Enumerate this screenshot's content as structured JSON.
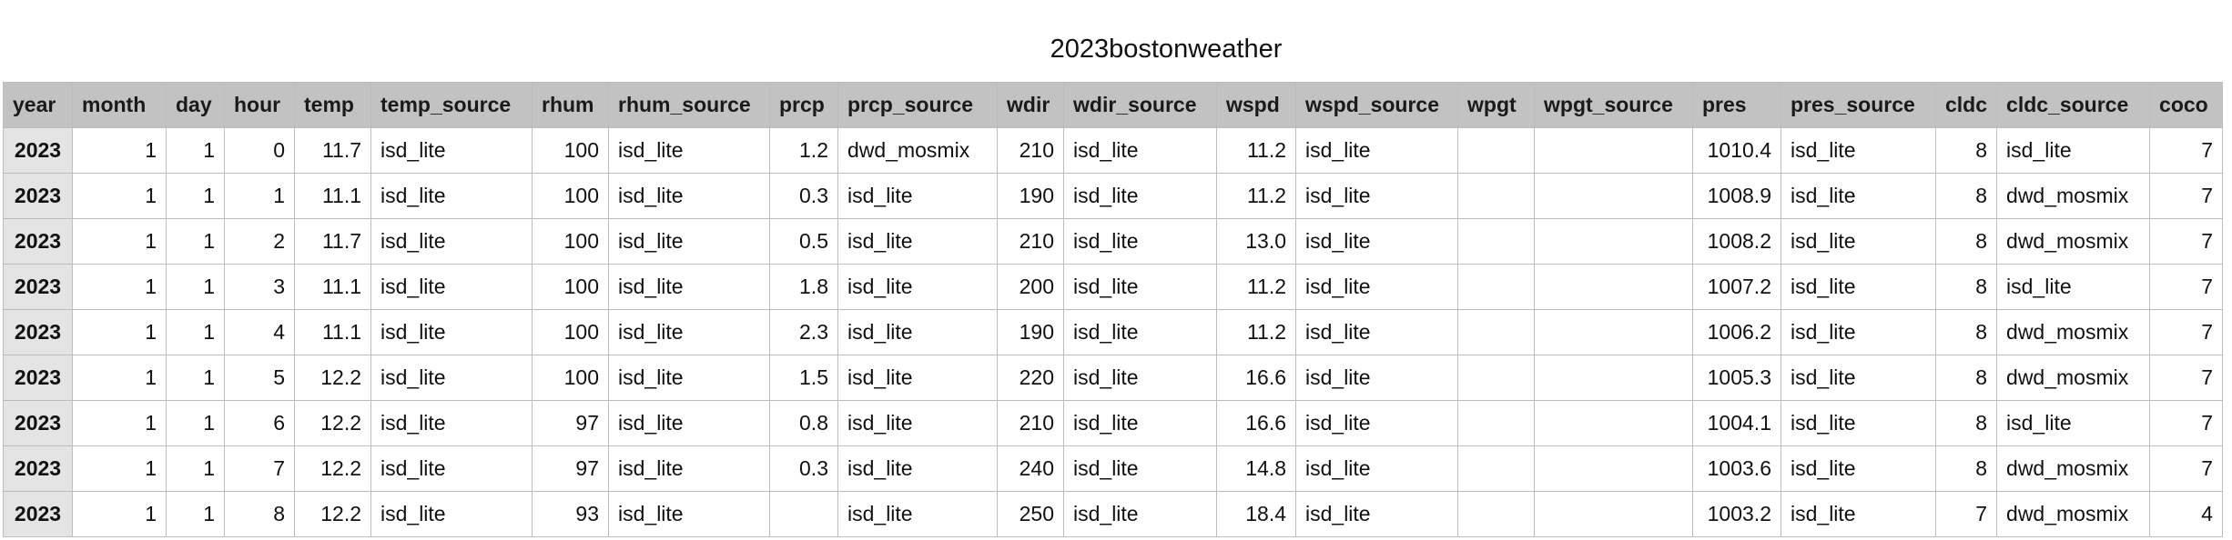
{
  "sheet": {
    "title": "2023bostonweather"
  },
  "columns": [
    {
      "key": "year",
      "label": "year",
      "type": "year"
    },
    {
      "key": "month",
      "label": "month",
      "type": "num"
    },
    {
      "key": "day",
      "label": "day",
      "type": "num"
    },
    {
      "key": "hour",
      "label": "hour",
      "type": "num"
    },
    {
      "key": "temp",
      "label": "temp",
      "type": "num"
    },
    {
      "key": "temp_source",
      "label": "temp_source",
      "type": "txt"
    },
    {
      "key": "rhum",
      "label": "rhum",
      "type": "num"
    },
    {
      "key": "rhum_source",
      "label": "rhum_source",
      "type": "txt"
    },
    {
      "key": "prcp",
      "label": "prcp",
      "type": "num"
    },
    {
      "key": "prcp_source",
      "label": "prcp_source",
      "type": "txt"
    },
    {
      "key": "wdir",
      "label": "wdir",
      "type": "num"
    },
    {
      "key": "wdir_source",
      "label": "wdir_source",
      "type": "txt"
    },
    {
      "key": "wspd",
      "label": "wspd",
      "type": "num"
    },
    {
      "key": "wspd_source",
      "label": "wspd_source",
      "type": "txt"
    },
    {
      "key": "wpgt",
      "label": "wpgt",
      "type": "num"
    },
    {
      "key": "wpgt_source",
      "label": "wpgt_source",
      "type": "txt"
    },
    {
      "key": "pres",
      "label": "pres",
      "type": "num"
    },
    {
      "key": "pres_source",
      "label": "pres_source",
      "type": "txt"
    },
    {
      "key": "cldc",
      "label": "cldc",
      "type": "num"
    },
    {
      "key": "cldc_source",
      "label": "cldc_source",
      "type": "txt"
    },
    {
      "key": "coco",
      "label": "coco",
      "type": "num"
    }
  ],
  "rows": [
    [
      "2023",
      "1",
      "1",
      "0",
      "11.7",
      "isd_lite",
      "100",
      "isd_lite",
      "1.2",
      "dwd_mosmix",
      "210",
      "isd_lite",
      "11.2",
      "isd_lite",
      "",
      "",
      "1010.4",
      "isd_lite",
      "8",
      "isd_lite",
      "7"
    ],
    [
      "2023",
      "1",
      "1",
      "1",
      "11.1",
      "isd_lite",
      "100",
      "isd_lite",
      "0.3",
      "isd_lite",
      "190",
      "isd_lite",
      "11.2",
      "isd_lite",
      "",
      "",
      "1008.9",
      "isd_lite",
      "8",
      "dwd_mosmix",
      "7"
    ],
    [
      "2023",
      "1",
      "1",
      "2",
      "11.7",
      "isd_lite",
      "100",
      "isd_lite",
      "0.5",
      "isd_lite",
      "210",
      "isd_lite",
      "13.0",
      "isd_lite",
      "",
      "",
      "1008.2",
      "isd_lite",
      "8",
      "dwd_mosmix",
      "7"
    ],
    [
      "2023",
      "1",
      "1",
      "3",
      "11.1",
      "isd_lite",
      "100",
      "isd_lite",
      "1.8",
      "isd_lite",
      "200",
      "isd_lite",
      "11.2",
      "isd_lite",
      "",
      "",
      "1007.2",
      "isd_lite",
      "8",
      "isd_lite",
      "7"
    ],
    [
      "2023",
      "1",
      "1",
      "4",
      "11.1",
      "isd_lite",
      "100",
      "isd_lite",
      "2.3",
      "isd_lite",
      "190",
      "isd_lite",
      "11.2",
      "isd_lite",
      "",
      "",
      "1006.2",
      "isd_lite",
      "8",
      "dwd_mosmix",
      "7"
    ],
    [
      "2023",
      "1",
      "1",
      "5",
      "12.2",
      "isd_lite",
      "100",
      "isd_lite",
      "1.5",
      "isd_lite",
      "220",
      "isd_lite",
      "16.6",
      "isd_lite",
      "",
      "",
      "1005.3",
      "isd_lite",
      "8",
      "dwd_mosmix",
      "7"
    ],
    [
      "2023",
      "1",
      "1",
      "6",
      "12.2",
      "isd_lite",
      "97",
      "isd_lite",
      "0.8",
      "isd_lite",
      "210",
      "isd_lite",
      "16.6",
      "isd_lite",
      "",
      "",
      "1004.1",
      "isd_lite",
      "8",
      "isd_lite",
      "7"
    ],
    [
      "2023",
      "1",
      "1",
      "7",
      "12.2",
      "isd_lite",
      "97",
      "isd_lite",
      "0.3",
      "isd_lite",
      "240",
      "isd_lite",
      "14.8",
      "isd_lite",
      "",
      "",
      "1003.6",
      "isd_lite",
      "8",
      "dwd_mosmix",
      "7"
    ],
    [
      "2023",
      "1",
      "1",
      "8",
      "12.2",
      "isd_lite",
      "93",
      "isd_lite",
      "",
      "isd_lite",
      "250",
      "isd_lite",
      "18.4",
      "isd_lite",
      "",
      "",
      "1003.2",
      "isd_lite",
      "7",
      "dwd_mosmix",
      "4"
    ]
  ]
}
